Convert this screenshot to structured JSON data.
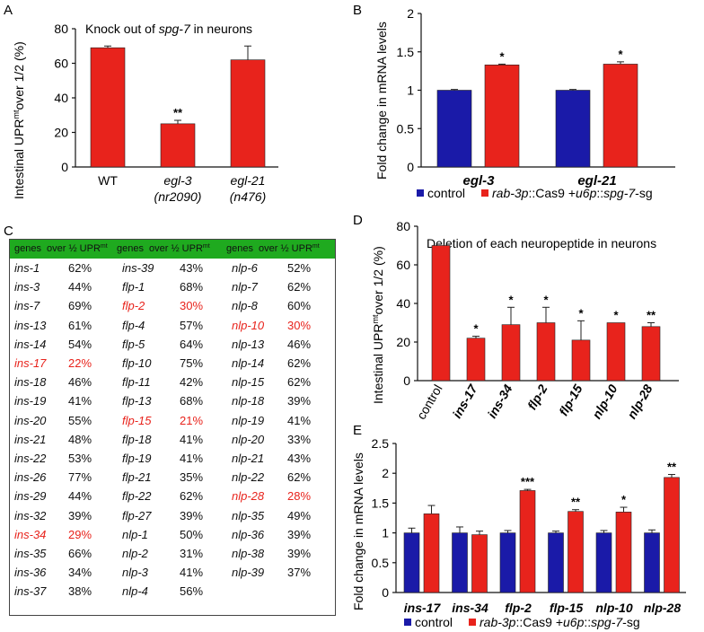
{
  "panel_labels": {
    "a": "A",
    "b": "B",
    "c": "C",
    "d": "D",
    "e": "E"
  },
  "legend": {
    "control": "control",
    "treated_parts": [
      "rab-3p",
      "::Cas9 +",
      "u6p",
      "::",
      "spg-7",
      "-sg"
    ]
  },
  "colors": {
    "red": "#e8231c",
    "blue": "#1a1aa8",
    "green": "#1faa1f"
  },
  "chart_data": [
    {
      "id": "A",
      "type": "bar",
      "title_prefix": "Knock out of ",
      "title_gene": "spg-7",
      "title_suffix": " in neurons",
      "ylabel_prefix": "Intestinal UPR",
      "ylabel_sup": "mt",
      "ylabel_suffix": "over 1/2 (%)",
      "ylim": [
        0,
        80
      ],
      "yticks": [
        "0",
        "20",
        "40",
        "60",
        "80"
      ],
      "categories": [
        {
          "line1": "WT",
          "line2": ""
        },
        {
          "line1": "egl-3",
          "line2": "(nr2090)"
        },
        {
          "line1": "egl-21",
          "line2": "(n476)"
        }
      ],
      "values": [
        69,
        25,
        62
      ],
      "errors": [
        1,
        2,
        8
      ],
      "annotations": [
        "",
        "**",
        ""
      ]
    },
    {
      "id": "B",
      "type": "bar",
      "ylabel": "Fold change in mRNA levels",
      "ylim": [
        0,
        2
      ],
      "yticks": [
        "0",
        "0.5",
        "1",
        "1.5",
        "2"
      ],
      "categories": [
        "egl-3",
        "egl-21"
      ],
      "series": [
        {
          "name": "control",
          "values": [
            1.0,
            1.0
          ],
          "errors": [
            0.01,
            0.01
          ],
          "annotations": [
            "",
            ""
          ]
        },
        {
          "name": "rab-3p::Cas9 +u6p::spg-7-sg",
          "values": [
            1.33,
            1.34
          ],
          "errors": [
            0.01,
            0.03
          ],
          "annotations": [
            "*",
            "*"
          ]
        }
      ]
    },
    {
      "id": "C",
      "type": "table",
      "header": {
        "genes": "genes",
        "over": "over ½ UPR",
        "sup": "mt"
      },
      "columns": [
        [
          [
            "ins-1",
            "62%",
            false
          ],
          [
            "ins-3",
            "44%",
            false
          ],
          [
            "ins-7",
            "69%",
            false
          ],
          [
            "ins-13",
            "61%",
            false
          ],
          [
            "ins-14",
            "54%",
            false
          ],
          [
            "ins-17",
            "22%",
            true
          ],
          [
            "ins-18",
            "46%",
            false
          ],
          [
            "ins-19",
            "41%",
            false
          ],
          [
            "ins-20",
            "55%",
            false
          ],
          [
            "ins-21",
            "48%",
            false
          ],
          [
            "ins-22",
            "53%",
            false
          ],
          [
            "ins-26",
            "77%",
            false
          ],
          [
            "ins-29",
            "44%",
            false
          ],
          [
            "ins-32",
            "39%",
            false
          ],
          [
            "ins-34",
            "29%",
            true
          ],
          [
            "ins-35",
            "66%",
            false
          ],
          [
            "ins-36",
            "34%",
            false
          ],
          [
            "ins-37",
            "38%",
            false
          ]
        ],
        [
          [
            "ins-39",
            "43%",
            false
          ],
          [
            "flp-1",
            "68%",
            false
          ],
          [
            "flp-2",
            "30%",
            true
          ],
          [
            "flp-4",
            "57%",
            false
          ],
          [
            "flp-5",
            "64%",
            false
          ],
          [
            "flp-10",
            "75%",
            false
          ],
          [
            "flp-11",
            "42%",
            false
          ],
          [
            "flp-13",
            "68%",
            false
          ],
          [
            "flp-15",
            "21%",
            true
          ],
          [
            "flp-18",
            "41%",
            false
          ],
          [
            "flp-19",
            "41%",
            false
          ],
          [
            "flp-21",
            "35%",
            false
          ],
          [
            "flp-22",
            "62%",
            false
          ],
          [
            "flp-27",
            "39%",
            false
          ],
          [
            "nlp-1",
            "50%",
            false
          ],
          [
            "nlp-2",
            "31%",
            false
          ],
          [
            "nlp-3",
            "41%",
            false
          ],
          [
            "nlp-4",
            "56%",
            false
          ]
        ],
        [
          [
            "nlp-6",
            "52%",
            false
          ],
          [
            "nlp-7",
            "62%",
            false
          ],
          [
            "nlp-8",
            "60%",
            false
          ],
          [
            "nlp-10",
            "30%",
            true
          ],
          [
            "nlp-13",
            "46%",
            false
          ],
          [
            "nlp-14",
            "62%",
            false
          ],
          [
            "nlp-15",
            "62%",
            false
          ],
          [
            "nlp-18",
            "39%",
            false
          ],
          [
            "nlp-19",
            "41%",
            false
          ],
          [
            "nlp-20",
            "33%",
            false
          ],
          [
            "nlp-21",
            "43%",
            false
          ],
          [
            "nlp-22",
            "62%",
            false
          ],
          [
            "nlp-28",
            "28%",
            true
          ],
          [
            "nlp-35",
            "49%",
            false
          ],
          [
            "nlp-36",
            "39%",
            false
          ],
          [
            "nlp-38",
            "39%",
            false
          ],
          [
            "nlp-39",
            "37%",
            false
          ]
        ]
      ]
    },
    {
      "id": "D",
      "type": "bar",
      "title": "Deletion of each neuropeptide in neurons",
      "ylabel_prefix": "Intestinal UPR",
      "ylabel_sup": "mt",
      "ylabel_suffix": "over 1/2 (%)",
      "ylim": [
        0,
        80
      ],
      "yticks": [
        "0",
        "20",
        "40",
        "60",
        "80"
      ],
      "categories": [
        "control",
        "ins-17",
        "ins-34",
        "flp-2",
        "flp-15",
        "nlp-10",
        "nlp-28"
      ],
      "values": [
        70,
        22,
        29,
        30,
        21,
        30,
        28
      ],
      "errors": [
        0,
        1,
        9,
        8,
        10,
        0,
        2
      ],
      "annotations": [
        "",
        "*",
        "*",
        "*",
        "*",
        "*",
        "**"
      ]
    },
    {
      "id": "E",
      "type": "bar",
      "ylabel": "Fold change in mRNA levels",
      "ylim": [
        0,
        2.5
      ],
      "yticks": [
        "0",
        "0.5",
        "1",
        "1.5",
        "2",
        "2.5"
      ],
      "categories": [
        "ins-17",
        "ins-34",
        "flp-2",
        "flp-15",
        "nlp-10",
        "nlp-28"
      ],
      "series": [
        {
          "name": "control",
          "values": [
            1.0,
            1.0,
            1.0,
            1.0,
            1.0,
            1.0
          ],
          "errors": [
            0.08,
            0.1,
            0.04,
            0.03,
            0.04,
            0.05
          ],
          "annotations": [
            "",
            "",
            "",
            "",
            "",
            ""
          ]
        },
        {
          "name": "rab-3p::Cas9 +u6p::spg-7-sg",
          "values": [
            1.32,
            0.97,
            1.71,
            1.36,
            1.35,
            1.93
          ],
          "errors": [
            0.14,
            0.06,
            0.02,
            0.03,
            0.08,
            0.05
          ],
          "annotations": [
            "",
            "",
            "***",
            "**",
            "*",
            "**"
          ]
        }
      ]
    }
  ]
}
